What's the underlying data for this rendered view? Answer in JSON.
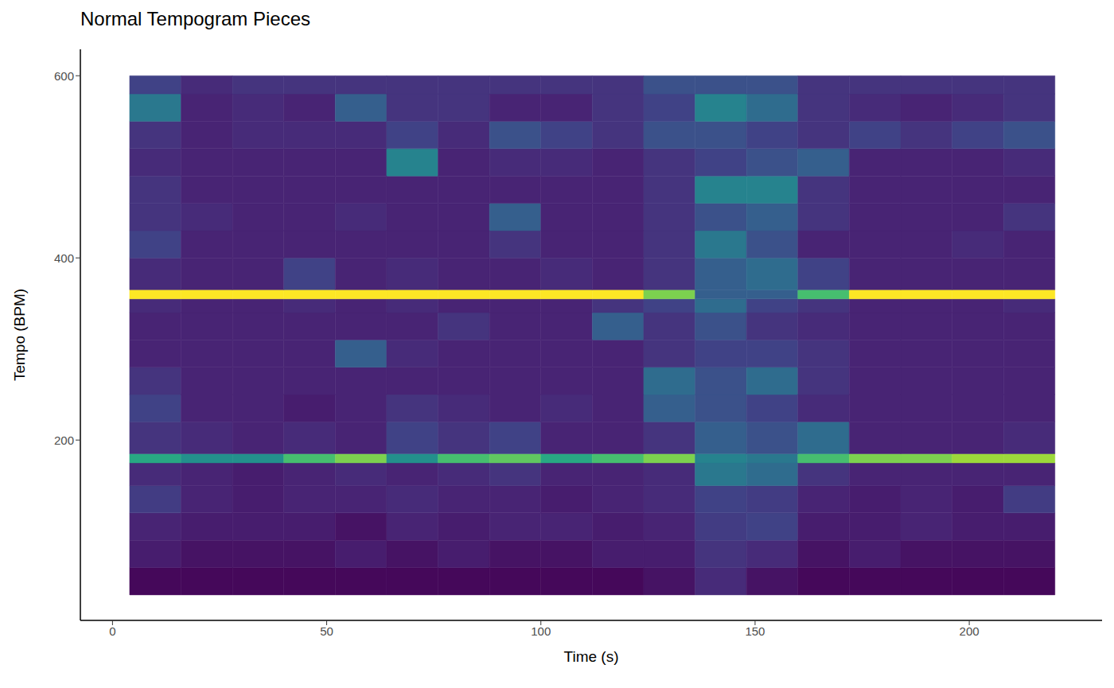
{
  "chart_data": {
    "type": "heatmap",
    "title": "Normal Tempogram Pieces",
    "x_label": "Time (s)",
    "y_label": "Tempo (BPM)",
    "xlim": [
      -7.5,
      231
    ],
    "ylim": [
      2,
      629
    ],
    "xticks": [
      0,
      50,
      100,
      150,
      200
    ],
    "yticks": [
      200,
      400,
      600
    ],
    "grid": false,
    "color": "viridis",
    "x_edges": [
      4,
      16,
      28,
      40,
      52,
      64,
      76,
      88,
      100,
      112,
      124,
      136,
      148,
      160,
      172,
      184,
      196,
      208,
      220
    ],
    "y_edges": [
      30,
      60,
      90,
      120,
      150,
      175,
      185,
      220,
      250,
      280,
      310,
      340,
      355,
      365,
      400,
      430,
      460,
      490,
      520,
      550,
      580,
      600
    ],
    "cells": [
      [
        0.02,
        0.02,
        0.02,
        0.02,
        0.02,
        0.02,
        0.02,
        0.02,
        0.02,
        0.02,
        0.05,
        0.12,
        0.05,
        0.02,
        0.02,
        0.02,
        0.02,
        0.02
      ],
      [
        0.08,
        0.05,
        0.05,
        0.05,
        0.08,
        0.05,
        0.08,
        0.05,
        0.05,
        0.08,
        0.08,
        0.15,
        0.12,
        0.05,
        0.08,
        0.05,
        0.05,
        0.05
      ],
      [
        0.1,
        0.08,
        0.08,
        0.08,
        0.05,
        0.1,
        0.08,
        0.1,
        0.1,
        0.08,
        0.1,
        0.18,
        0.2,
        0.08,
        0.08,
        0.1,
        0.08,
        0.08
      ],
      [
        0.18,
        0.1,
        0.08,
        0.1,
        0.1,
        0.12,
        0.1,
        0.1,
        0.08,
        0.1,
        0.12,
        0.2,
        0.18,
        0.1,
        0.08,
        0.1,
        0.08,
        0.18
      ],
      [
        0.12,
        0.1,
        0.08,
        0.1,
        0.12,
        0.1,
        0.12,
        0.15,
        0.1,
        0.1,
        0.12,
        0.4,
        0.35,
        0.15,
        0.1,
        0.1,
        0.1,
        0.1
      ],
      [
        0.6,
        0.5,
        0.5,
        0.7,
        0.8,
        0.5,
        0.7,
        0.75,
        0.6,
        0.7,
        0.8,
        0.45,
        0.4,
        0.7,
        0.8,
        0.8,
        0.85,
        0.85
      ],
      [
        0.15,
        0.12,
        0.1,
        0.12,
        0.1,
        0.2,
        0.15,
        0.2,
        0.1,
        0.1,
        0.15,
        0.3,
        0.25,
        0.35,
        0.1,
        0.1,
        0.1,
        0.12
      ],
      [
        0.2,
        0.1,
        0.1,
        0.08,
        0.1,
        0.15,
        0.12,
        0.1,
        0.12,
        0.1,
        0.3,
        0.25,
        0.2,
        0.12,
        0.1,
        0.1,
        0.1,
        0.1
      ],
      [
        0.15,
        0.1,
        0.1,
        0.1,
        0.1,
        0.1,
        0.1,
        0.1,
        0.1,
        0.1,
        0.35,
        0.25,
        0.35,
        0.15,
        0.1,
        0.1,
        0.1,
        0.1
      ],
      [
        0.1,
        0.1,
        0.1,
        0.1,
        0.3,
        0.12,
        0.1,
        0.1,
        0.1,
        0.1,
        0.15,
        0.2,
        0.2,
        0.15,
        0.1,
        0.1,
        0.1,
        0.1
      ],
      [
        0.1,
        0.1,
        0.1,
        0.1,
        0.1,
        0.1,
        0.15,
        0.1,
        0.1,
        0.3,
        0.15,
        0.25,
        0.15,
        0.12,
        0.1,
        0.1,
        0.1,
        0.1
      ],
      [
        0.12,
        0.1,
        0.1,
        0.12,
        0.1,
        0.12,
        0.1,
        0.1,
        0.1,
        0.15,
        0.2,
        0.35,
        0.2,
        0.15,
        0.1,
        0.1,
        0.1,
        0.12
      ],
      [
        1.0,
        1.0,
        1.0,
        1.0,
        1.0,
        1.0,
        1.0,
        1.0,
        1.0,
        1.0,
        0.8,
        0.3,
        0.3,
        0.7,
        1.0,
        1.0,
        1.0,
        1.0
      ],
      [
        0.12,
        0.1,
        0.1,
        0.2,
        0.1,
        0.12,
        0.1,
        0.1,
        0.12,
        0.1,
        0.15,
        0.3,
        0.35,
        0.2,
        0.1,
        0.1,
        0.1,
        0.1
      ],
      [
        0.2,
        0.1,
        0.1,
        0.1,
        0.1,
        0.1,
        0.1,
        0.15,
        0.1,
        0.1,
        0.15,
        0.4,
        0.25,
        0.1,
        0.1,
        0.1,
        0.12,
        0.1
      ],
      [
        0.15,
        0.12,
        0.1,
        0.1,
        0.12,
        0.1,
        0.1,
        0.3,
        0.1,
        0.1,
        0.15,
        0.25,
        0.3,
        0.15,
        0.1,
        0.1,
        0.1,
        0.15
      ],
      [
        0.15,
        0.1,
        0.1,
        0.1,
        0.1,
        0.1,
        0.1,
        0.1,
        0.1,
        0.1,
        0.15,
        0.45,
        0.45,
        0.15,
        0.1,
        0.1,
        0.1,
        0.1
      ],
      [
        0.12,
        0.1,
        0.1,
        0.1,
        0.1,
        0.45,
        0.1,
        0.12,
        0.12,
        0.1,
        0.15,
        0.2,
        0.25,
        0.3,
        0.1,
        0.1,
        0.1,
        0.12
      ],
      [
        0.15,
        0.1,
        0.12,
        0.12,
        0.12,
        0.2,
        0.12,
        0.25,
        0.2,
        0.15,
        0.25,
        0.25,
        0.2,
        0.15,
        0.2,
        0.15,
        0.2,
        0.25
      ],
      [
        0.4,
        0.1,
        0.12,
        0.1,
        0.3,
        0.15,
        0.15,
        0.1,
        0.1,
        0.15,
        0.2,
        0.45,
        0.35,
        0.15,
        0.12,
        0.1,
        0.12,
        0.15
      ],
      [
        0.2,
        0.12,
        0.15,
        0.15,
        0.15,
        0.15,
        0.15,
        0.15,
        0.15,
        0.15,
        0.25,
        0.25,
        0.25,
        0.15,
        0.15,
        0.15,
        0.15,
        0.15
      ]
    ]
  }
}
